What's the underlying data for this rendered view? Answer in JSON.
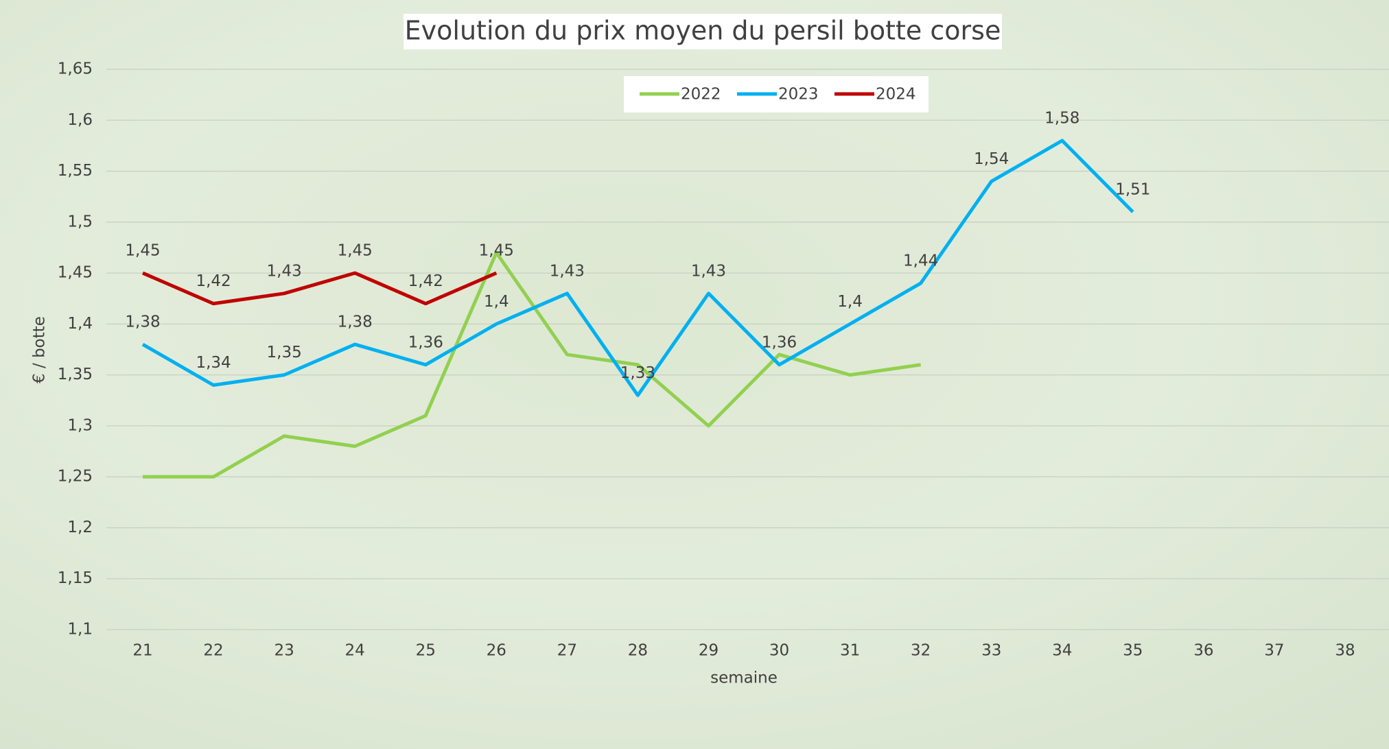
{
  "chart_data": {
    "type": "line",
    "title": "Evolution du prix moyen du persil botte corse",
    "x_label": "semaine",
    "y_label": "€ / botte",
    "categories": [
      "21",
      "22",
      "23",
      "24",
      "25",
      "26",
      "27",
      "28",
      "29",
      "30",
      "31",
      "32",
      "33",
      "34",
      "35",
      "36",
      "37",
      "38"
    ],
    "series": [
      {
        "name": "2022",
        "color": "#92d050",
        "values": [
          1.25,
          1.25,
          1.29,
          1.28,
          1.31,
          1.47,
          1.37,
          1.36,
          1.3,
          1.37,
          1.35,
          1.36,
          null,
          null,
          null,
          null,
          null,
          null
        ]
      },
      {
        "name": "2023",
        "color": "#00b0f0",
        "values": [
          1.38,
          1.34,
          1.35,
          1.38,
          1.36,
          1.4,
          1.43,
          1.33,
          1.43,
          1.36,
          1.4,
          1.44,
          1.54,
          1.58,
          1.51,
          null,
          null,
          null
        ],
        "value_labels": [
          "1,38",
          "1,34",
          "1,35",
          "1,38",
          "1,36",
          "1,4",
          "1,43",
          "1,33",
          "1,43",
          "1,36",
          "1,4",
          "1,44",
          "1,54",
          "1,58",
          "1,51",
          null,
          null,
          null
        ]
      },
      {
        "name": "2024",
        "color": "#c00000",
        "values": [
          1.45,
          1.42,
          1.43,
          1.45,
          1.42,
          1.45,
          null,
          null,
          null,
          null,
          null,
          null,
          null,
          null,
          null,
          null,
          null,
          null
        ],
        "value_labels": [
          "1,45",
          "1,42",
          "1,43",
          "1,45",
          "1,42",
          "1,45",
          null,
          null,
          null,
          null,
          null,
          null,
          null,
          null,
          null,
          null,
          null,
          null
        ]
      }
    ],
    "ylim": [
      1.1,
      1.65
    ],
    "yticks": [
      {
        "value": 1.1,
        "label": "1,1"
      },
      {
        "value": 1.15,
        "label": "1,15"
      },
      {
        "value": 1.2,
        "label": "1,2"
      },
      {
        "value": 1.25,
        "label": "1,25"
      },
      {
        "value": 1.3,
        "label": "1,3"
      },
      {
        "value": 1.35,
        "label": "1,35"
      },
      {
        "value": 1.4,
        "label": "1,4"
      },
      {
        "value": 1.45,
        "label": "1,45"
      },
      {
        "value": 1.5,
        "label": "1,5"
      },
      {
        "value": 1.55,
        "label": "1,55"
      },
      {
        "value": 1.6,
        "label": "1,6"
      },
      {
        "value": 1.65,
        "label": "1,65"
      }
    ],
    "grid": true,
    "legend": "top"
  }
}
